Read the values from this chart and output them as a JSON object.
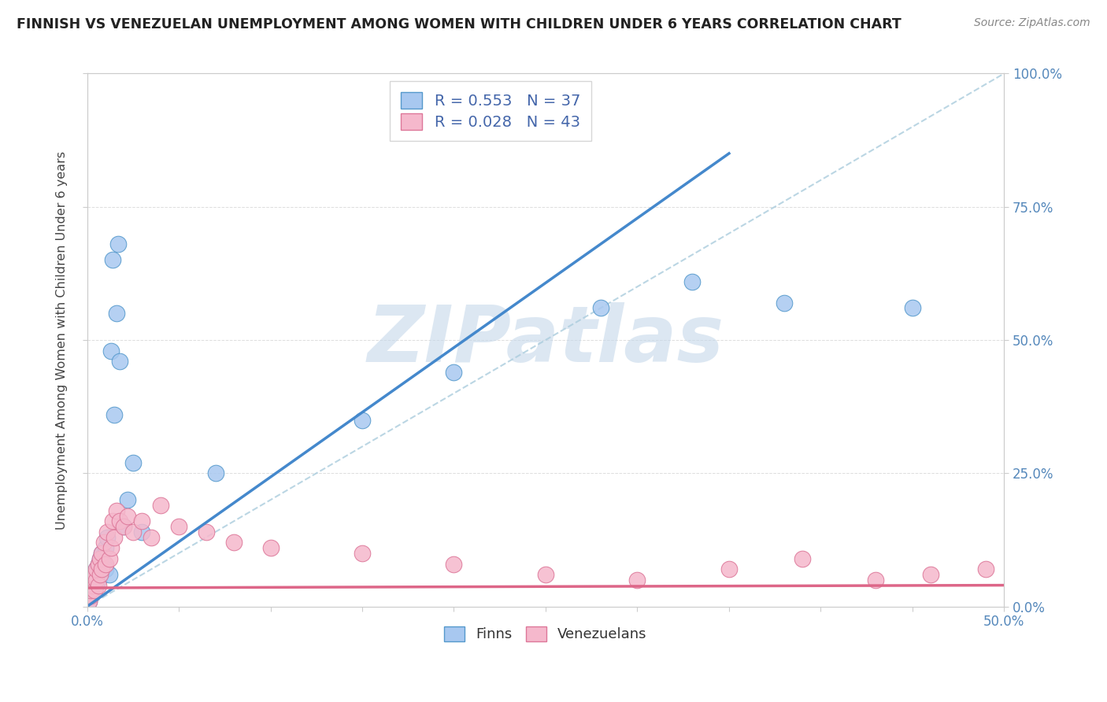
{
  "title": "FINNISH VS VENEZUELAN UNEMPLOYMENT AMONG WOMEN WITH CHILDREN UNDER 6 YEARS CORRELATION CHART",
  "source": "Source: ZipAtlas.com",
  "ylabel": "Unemployment Among Women with Children Under 6 years",
  "xlim": [
    0,
    0.5
  ],
  "ylim": [
    0,
    1.0
  ],
  "finn_R": 0.553,
  "finn_N": 37,
  "venez_R": 0.028,
  "venez_N": 43,
  "finn_color": "#a8c8f0",
  "venez_color": "#f5b8cc",
  "finn_edge_color": "#5599cc",
  "venez_edge_color": "#dd7799",
  "finn_line_color": "#4488cc",
  "venez_line_color": "#dd6688",
  "diag_color": "#aaccdd",
  "background_color": "#ffffff",
  "watermark": "ZIPatlas",
  "watermark_color": "#c5d8ea",
  "grid_color": "#dddddd",
  "title_color": "#222222",
  "tick_color": "#5588bb",
  "finn_x": [
    0.001,
    0.002,
    0.002,
    0.003,
    0.003,
    0.004,
    0.004,
    0.005,
    0.005,
    0.006,
    0.006,
    0.007,
    0.007,
    0.008,
    0.008,
    0.009,
    0.01,
    0.01,
    0.011,
    0.012,
    0.013,
    0.014,
    0.015,
    0.016,
    0.017,
    0.018,
    0.02,
    0.022,
    0.025,
    0.03,
    0.07,
    0.15,
    0.2,
    0.28,
    0.33,
    0.38,
    0.45
  ],
  "finn_y": [
    0.01,
    0.02,
    0.03,
    0.04,
    0.05,
    0.03,
    0.06,
    0.04,
    0.07,
    0.05,
    0.08,
    0.06,
    0.09,
    0.07,
    0.1,
    0.08,
    0.07,
    0.11,
    0.13,
    0.06,
    0.48,
    0.65,
    0.36,
    0.55,
    0.68,
    0.46,
    0.15,
    0.2,
    0.27,
    0.14,
    0.25,
    0.35,
    0.44,
    0.56,
    0.61,
    0.57,
    0.56
  ],
  "finn_line_x": [
    0.0,
    0.35
  ],
  "finn_line_y": [
    0.0,
    0.85
  ],
  "venez_x": [
    0.001,
    0.002,
    0.002,
    0.003,
    0.003,
    0.004,
    0.004,
    0.005,
    0.005,
    0.006,
    0.006,
    0.007,
    0.007,
    0.008,
    0.008,
    0.009,
    0.01,
    0.011,
    0.012,
    0.013,
    0.014,
    0.015,
    0.016,
    0.018,
    0.02,
    0.022,
    0.025,
    0.03,
    0.035,
    0.04,
    0.05,
    0.065,
    0.08,
    0.1,
    0.15,
    0.2,
    0.25,
    0.3,
    0.35,
    0.39,
    0.43,
    0.46,
    0.49
  ],
  "venez_y": [
    0.01,
    0.02,
    0.03,
    0.04,
    0.05,
    0.03,
    0.06,
    0.05,
    0.07,
    0.04,
    0.08,
    0.06,
    0.09,
    0.07,
    0.1,
    0.12,
    0.08,
    0.14,
    0.09,
    0.11,
    0.16,
    0.13,
    0.18,
    0.16,
    0.15,
    0.17,
    0.14,
    0.16,
    0.13,
    0.19,
    0.15,
    0.14,
    0.12,
    0.11,
    0.1,
    0.08,
    0.06,
    0.05,
    0.07,
    0.09,
    0.05,
    0.06,
    0.07
  ],
  "venez_line_x": [
    0.0,
    0.5
  ],
  "venez_line_y": [
    0.035,
    0.04
  ]
}
